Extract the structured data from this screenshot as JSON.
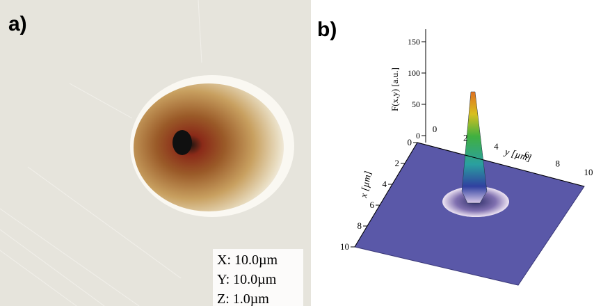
{
  "panel_a": {
    "label": "a)",
    "scale": [
      "X: 10.0µm",
      "Y: 10.0µm",
      "Z: 1.0µm"
    ]
  },
  "panel_b": {
    "label": "b)",
    "z_label": "F(x,y) [a.u.]",
    "y_label": "y [µm]",
    "x_label": "x [µm]",
    "z_ticks": [
      "0",
      "50",
      "100",
      "150"
    ],
    "y_ticks": [
      "0",
      "2",
      "4",
      "6",
      "8",
      "10"
    ],
    "x_ticks": [
      "0",
      "2",
      "4",
      "6",
      "8",
      "10"
    ]
  }
}
